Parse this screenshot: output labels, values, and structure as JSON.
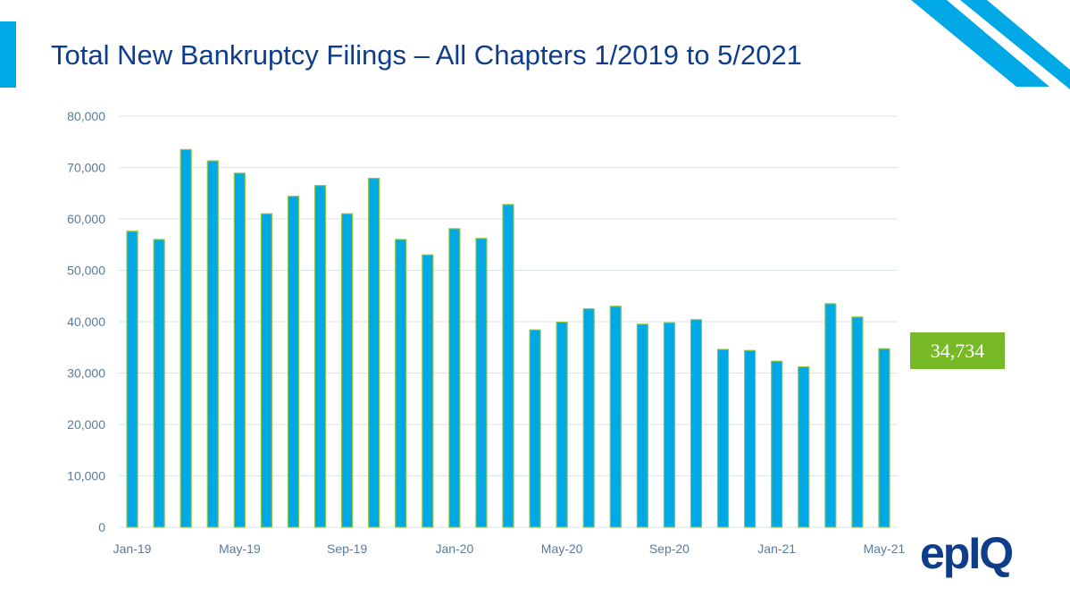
{
  "title": "Total New Bankruptcy Filings – All Chapters 1/2019 to 5/2021",
  "callout": {
    "value": "34,734"
  },
  "logo": "epiq",
  "colors": {
    "bar": "#00a9e6",
    "bar_border": "#8cc63f",
    "callout": "#78b928",
    "title": "#0e3d8c"
  },
  "chart_data": {
    "type": "bar",
    "title": "Total New Bankruptcy Filings – All Chapters 1/2019 to 5/2021",
    "categories": [
      "Jan-19",
      "Feb-19",
      "Mar-19",
      "Apr-19",
      "May-19",
      "Jun-19",
      "Jul-19",
      "Aug-19",
      "Sep-19",
      "Oct-19",
      "Nov-19",
      "Dec-19",
      "Jan-20",
      "Feb-20",
      "Mar-20",
      "Apr-20",
      "May-20",
      "Jun-20",
      "Jul-20",
      "Aug-20",
      "Sep-20",
      "Oct-20",
      "Nov-20",
      "Dec-20",
      "Jan-21",
      "Feb-21",
      "Mar-21",
      "Apr-21",
      "May-21"
    ],
    "values": [
      57600,
      56000,
      73500,
      71300,
      68900,
      61000,
      64400,
      66500,
      61000,
      67900,
      56000,
      53000,
      58100,
      56200,
      62800,
      38400,
      39900,
      42500,
      43000,
      39500,
      39800,
      40400,
      34600,
      34400,
      32300,
      31200,
      43500,
      40900,
      34734
    ],
    "xtick_labels": [
      "Jan-19",
      "May-19",
      "Sep-19",
      "Jan-20",
      "May-20",
      "Sep-20",
      "Jan-21",
      "May-21"
    ],
    "xtick_indices": [
      0,
      4,
      8,
      12,
      16,
      20,
      24,
      28
    ],
    "ytick_labels": [
      "0",
      "10,000",
      "20,000",
      "30,000",
      "40,000",
      "50,000",
      "60,000",
      "70,000",
      "80,000"
    ],
    "ylim": [
      0,
      80000
    ],
    "grid": true,
    "xlabel": "",
    "ylabel": ""
  }
}
